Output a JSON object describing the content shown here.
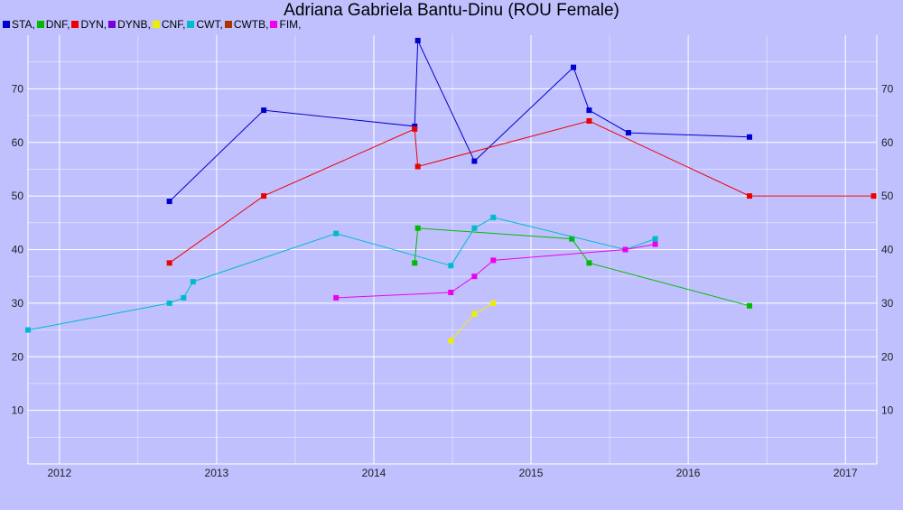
{
  "chart_data": {
    "type": "line",
    "title": "Adriana Gabriela Bantu-Dinu (ROU Female)",
    "xlabel": "",
    "ylabel": "",
    "xlim": [
      2011.8,
      2017.2
    ],
    "ylim": [
      0,
      80
    ],
    "x_ticks": [
      2012,
      2013,
      2014,
      2015,
      2016,
      2017
    ],
    "y_ticks": [
      10,
      20,
      30,
      40,
      50,
      60,
      70
    ],
    "grid": true,
    "legend_position": "top-left",
    "series": [
      {
        "name": "STA,",
        "color": "#0000cc",
        "points": [
          [
            2012.7,
            49
          ],
          [
            2013.3,
            66
          ],
          [
            2014.26,
            63
          ],
          [
            2014.28,
            79
          ],
          [
            2014.64,
            56.5
          ],
          [
            2015.27,
            74
          ],
          [
            2015.37,
            66
          ],
          [
            2015.62,
            61.8
          ],
          [
            2016.39,
            61
          ]
        ]
      },
      {
        "name": "DNF,",
        "color": "#00bb00",
        "points": [
          [
            2014.26,
            37.5
          ],
          [
            2014.28,
            44
          ],
          [
            2015.26,
            42
          ],
          [
            2015.37,
            37.5
          ],
          [
            2016.39,
            29.5
          ]
        ]
      },
      {
        "name": "DYN,",
        "color": "#ee0000",
        "points": [
          [
            2012.7,
            37.5
          ],
          [
            2013.3,
            50
          ],
          [
            2014.26,
            62.5
          ],
          [
            2014.28,
            55.5
          ],
          [
            2015.37,
            64
          ],
          [
            2016.39,
            50
          ],
          [
            2017.18,
            50
          ]
        ]
      },
      {
        "name": "DYNB,",
        "color": "#7700dd",
        "points": []
      },
      {
        "name": "CNF,",
        "color": "#eeee00",
        "points": [
          [
            2014.49,
            23
          ],
          [
            2014.64,
            28
          ],
          [
            2014.76,
            30
          ]
        ]
      },
      {
        "name": "CWT,",
        "color": "#00bbcc",
        "points": [
          [
            2011.8,
            25
          ],
          [
            2012.7,
            30
          ],
          [
            2012.79,
            31
          ],
          [
            2012.85,
            34
          ],
          [
            2013.76,
            43
          ],
          [
            2014.49,
            37
          ],
          [
            2014.64,
            44
          ],
          [
            2014.76,
            46
          ],
          [
            2015.6,
            40
          ],
          [
            2015.79,
            42
          ]
        ]
      },
      {
        "name": "CWTB,",
        "color": "#aa3300",
        "points": []
      },
      {
        "name": "FIM,",
        "color": "#ee00ee",
        "points": [
          [
            2013.76,
            31
          ],
          [
            2014.49,
            32
          ],
          [
            2014.64,
            35
          ],
          [
            2014.76,
            38
          ],
          [
            2015.6,
            40
          ],
          [
            2015.79,
            41
          ]
        ]
      }
    ]
  }
}
